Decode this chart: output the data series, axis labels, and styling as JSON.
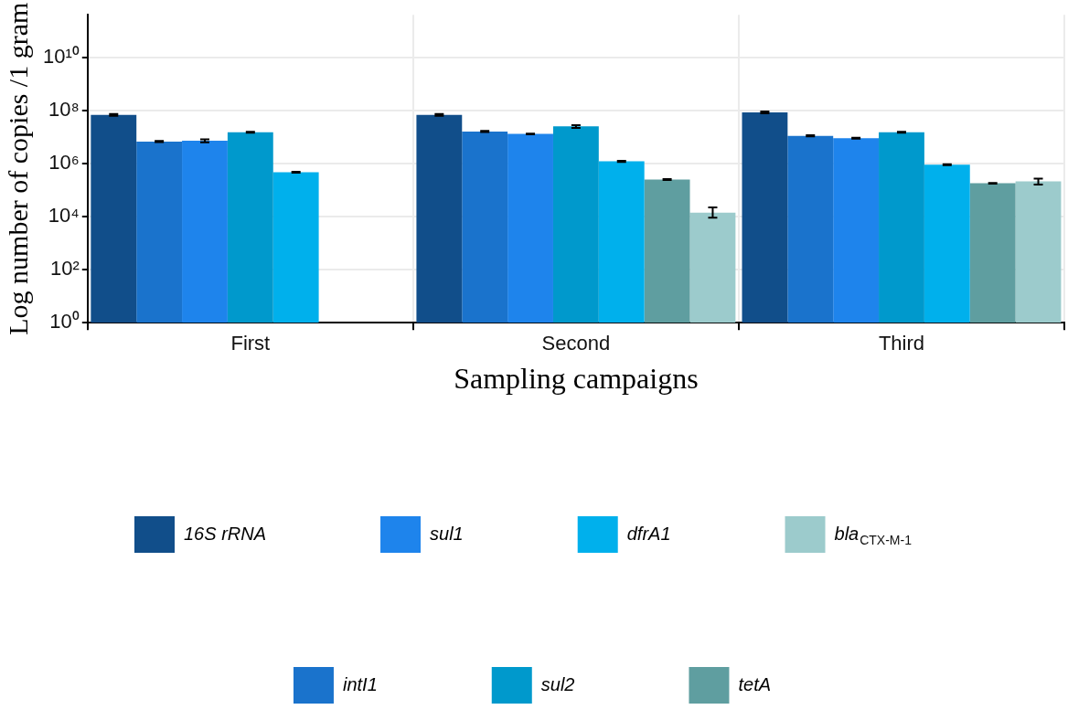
{
  "chart_data": {
    "type": "bar",
    "xlabel": "Sampling campaigns",
    "ylabel": "Log number of copies /1 gram",
    "categories": [
      "First",
      "Second",
      "Third"
    ],
    "series": [
      {
        "name": "16S rRNA",
        "color": "#114e8a",
        "values": [
          68000000,
          68000000,
          85000000
        ],
        "errors": [
          5000000,
          6000000,
          7000000
        ]
      },
      {
        "name": "intI1",
        "color": "#1a73cc",
        "values": [
          6700000,
          16000000,
          11000000
        ],
        "errors": [
          300000,
          800000,
          500000
        ]
      },
      {
        "name": "sul1",
        "color": "#1e84ec",
        "values": [
          7200000,
          13000000,
          9000000
        ],
        "errors": [
          900000,
          400000,
          400000
        ]
      },
      {
        "name": "sul2",
        "color": "#0099cc",
        "values": [
          15000000,
          25000000,
          15000000
        ],
        "errors": [
          500000,
          3000000,
          600000
        ]
      },
      {
        "name": "dfrA1",
        "color": "#00b0ec",
        "values": [
          470000,
          1200000,
          900000
        ],
        "errors": [
          20000,
          60000,
          30000
        ]
      },
      {
        "name": "tetA",
        "color": "#5f9ea0",
        "values": [
          null,
          250000,
          180000
        ],
        "errors": [
          null,
          10000,
          6000
        ]
      },
      {
        "name": "bla$_{CTX-M-1}$",
        "color": "#9ccbcc",
        "values": [
          null,
          14000,
          210000
        ],
        "errors": [
          null,
          [
            9000,
            22000
          ],
          [
            160000,
            270000
          ]
        ]
      }
    ],
    "log": "y",
    "ylim": [
      1,
      400000000000
    ],
    "yticks": [
      {
        "value": 1,
        "label": "10⁰"
      },
      {
        "value": 100,
        "label": "10²"
      },
      {
        "value": 10000,
        "label": "10⁴"
      },
      {
        "value": 1000000,
        "label": "10⁶"
      },
      {
        "value": 100000000,
        "label": "10⁸"
      },
      {
        "value": 10000000000,
        "label": "10¹⁰"
      }
    ],
    "grid": true,
    "legend": "bottom"
  }
}
